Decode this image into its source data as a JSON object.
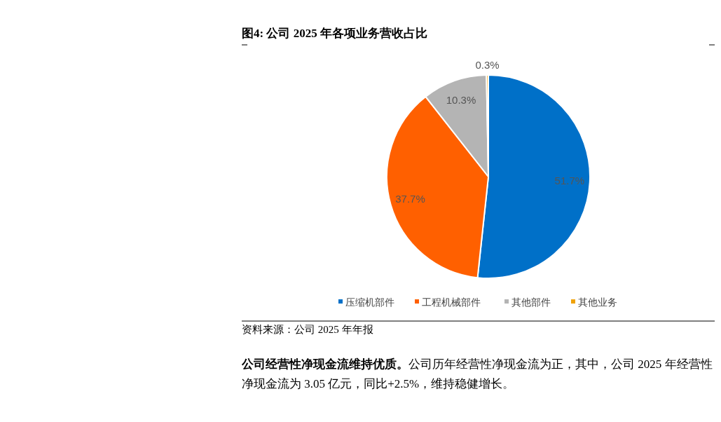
{
  "chart_data": {
    "type": "pie",
    "title": "图4:  公司  2025 年各项业务营收占比",
    "categories": [
      "压缩机部件",
      "工程机械部件",
      "其他部件",
      "其他业务"
    ],
    "values": [
      51.7,
      37.7,
      10.3,
      0.3
    ],
    "colors": [
      "#0070c8",
      "#ff6000",
      "#b4b4b4",
      "#f0a30a"
    ],
    "value_labels": [
      "51.7%",
      "37.7%",
      "10.3%",
      "0.3%"
    ],
    "legend": "bottom",
    "annotations": [
      "资料来源：公司 2025 年年报",
      "公司经营性净现金流维持优质。",
      "公司历年经营性净现金流为正，其中，公司 2025 年经营性净现金流为 3.05 亿元，同比+2.5%，维持稳健增长。"
    ]
  }
}
